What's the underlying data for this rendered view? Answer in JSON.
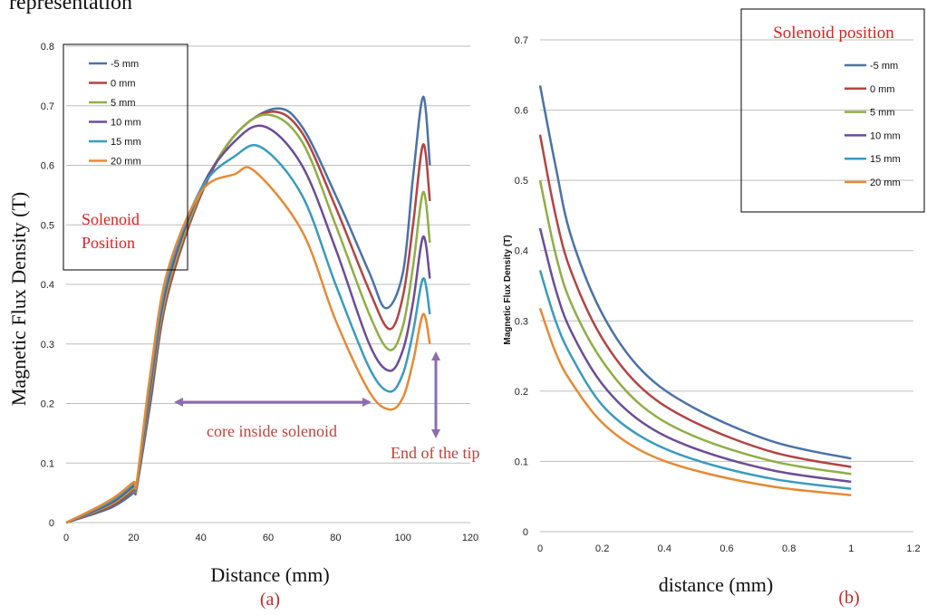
{
  "header_fragment": "representation",
  "charts": [
    {
      "id": "a",
      "type": "line",
      "panel_label": "(a)",
      "xlabel": "Distance (mm)",
      "ylabel": "Magnetic Flux Density (T)",
      "xlim": [
        0,
        120
      ],
      "ylim": [
        0,
        0.8
      ],
      "x_ticks": [
        "0",
        "20",
        "40",
        "60",
        "80",
        "100",
        "120"
      ],
      "y_ticks": [
        "0",
        "0.1",
        "0.2",
        "0.3",
        "0.4",
        "0.5",
        "0.6",
        "0.7",
        "0.8"
      ],
      "grid": true,
      "legend_title": "Solenoid Position",
      "legend_position": "top-left",
      "annotations": {
        "core_label": "core inside solenoid",
        "tip_label": "End of the tip"
      },
      "series": [
        {
          "name": "-5 mm",
          "color": "#4a72a8",
          "points": [
            [
              0,
              0
            ],
            [
              10,
              0.018
            ],
            [
              15,
              0.03
            ],
            [
              20,
              0.05
            ],
            [
              21,
              0.06
            ],
            [
              25,
              0.2
            ],
            [
              30,
              0.38
            ],
            [
              40,
              0.55
            ],
            [
              50,
              0.65
            ],
            [
              62,
              0.695
            ],
            [
              70,
              0.665
            ],
            [
              80,
              0.55
            ],
            [
              90,
              0.42
            ],
            [
              95,
              0.36
            ],
            [
              100,
              0.42
            ],
            [
              103,
              0.58
            ],
            [
              106,
              0.715
            ],
            [
              108,
              0.6
            ]
          ]
        },
        {
          "name": "0 mm",
          "color": "#b24443",
          "points": [
            [
              0,
              0
            ],
            [
              10,
              0.02
            ],
            [
              15,
              0.033
            ],
            [
              20,
              0.055
            ],
            [
              21,
              0.062
            ],
            [
              25,
              0.21
            ],
            [
              30,
              0.38
            ],
            [
              40,
              0.55
            ],
            [
              50,
              0.65
            ],
            [
              61,
              0.69
            ],
            [
              70,
              0.655
            ],
            [
              80,
              0.53
            ],
            [
              90,
              0.39
            ],
            [
              96,
              0.325
            ],
            [
              100,
              0.38
            ],
            [
              103,
              0.5
            ],
            [
              106,
              0.635
            ],
            [
              108,
              0.54
            ]
          ]
        },
        {
          "name": "5 mm",
          "color": "#8fae46",
          "points": [
            [
              0,
              0
            ],
            [
              10,
              0.022
            ],
            [
              15,
              0.036
            ],
            [
              20,
              0.058
            ],
            [
              21,
              0.064
            ],
            [
              25,
              0.22
            ],
            [
              30,
              0.39
            ],
            [
              40,
              0.555
            ],
            [
              50,
              0.65
            ],
            [
              60,
              0.685
            ],
            [
              70,
              0.64
            ],
            [
              80,
              0.5
            ],
            [
              90,
              0.35
            ],
            [
              96,
              0.29
            ],
            [
              100,
              0.33
            ],
            [
              103,
              0.43
            ],
            [
              106,
              0.555
            ],
            [
              108,
              0.47
            ]
          ]
        },
        {
          "name": "10 mm",
          "color": "#6c4d96",
          "points": [
            [
              0,
              0
            ],
            [
              10,
              0.024
            ],
            [
              15,
              0.039
            ],
            [
              20,
              0.062
            ],
            [
              21,
              0.066
            ],
            [
              25,
              0.23
            ],
            [
              30,
              0.4
            ],
            [
              40,
              0.56
            ],
            [
              50,
              0.64
            ],
            [
              59,
              0.665
            ],
            [
              70,
              0.6
            ],
            [
              80,
              0.46
            ],
            [
              90,
              0.3
            ],
            [
              96,
              0.255
            ],
            [
              100,
              0.29
            ],
            [
              103,
              0.37
            ],
            [
              106,
              0.48
            ],
            [
              108,
              0.41
            ]
          ]
        },
        {
          "name": "15 mm",
          "color": "#3a9bbd",
          "points": [
            [
              0,
              0
            ],
            [
              10,
              0.026
            ],
            [
              15,
              0.042
            ],
            [
              20,
              0.065
            ],
            [
              21,
              0.068
            ],
            [
              25,
              0.24
            ],
            [
              30,
              0.41
            ],
            [
              40,
              0.56
            ],
            [
              50,
              0.615
            ],
            [
              58,
              0.63
            ],
            [
              70,
              0.55
            ],
            [
              80,
              0.4
            ],
            [
              90,
              0.26
            ],
            [
              96,
              0.22
            ],
            [
              100,
              0.25
            ],
            [
              103,
              0.32
            ],
            [
              106,
              0.41
            ],
            [
              108,
              0.35
            ]
          ]
        },
        {
          "name": "20 mm",
          "color": "#e58a35",
          "points": [
            [
              0,
              0
            ],
            [
              10,
              0.028
            ],
            [
              15,
              0.045
            ],
            [
              20,
              0.068
            ],
            [
              21,
              0.07
            ],
            [
              25,
              0.25
            ],
            [
              30,
              0.42
            ],
            [
              40,
              0.555
            ],
            [
              50,
              0.585
            ],
            [
              56,
              0.59
            ],
            [
              70,
              0.49
            ],
            [
              80,
              0.34
            ],
            [
              90,
              0.22
            ],
            [
              96,
              0.19
            ],
            [
              100,
              0.21
            ],
            [
              103,
              0.27
            ],
            [
              106,
              0.35
            ],
            [
              108,
              0.3
            ]
          ]
        }
      ]
    },
    {
      "id": "b",
      "type": "line",
      "panel_label": "(b)",
      "xlabel": "distance (mm)",
      "ylabel": "Magnetic Flux Density (T)",
      "xlim": [
        0,
        1.2
      ],
      "ylim": [
        0,
        0.7
      ],
      "x_ticks": [
        "0",
        "0.2",
        "0.4",
        "0.6",
        "0.8",
        "1",
        "1.2"
      ],
      "y_ticks": [
        "0",
        "0.1",
        "0.2",
        "0.3",
        "0.4",
        "0.5",
        "0.6",
        "0.7"
      ],
      "grid": true,
      "legend_title": "Solenoid position",
      "legend_position": "top-right",
      "series": [
        {
          "name": "-5 mm",
          "color": "#4a72a8",
          "points": [
            [
              0,
              0.635
            ],
            [
              0.05,
              0.52
            ],
            [
              0.1,
              0.42
            ],
            [
              0.2,
              0.31
            ],
            [
              0.33,
              0.228
            ],
            [
              0.5,
              0.175
            ],
            [
              0.75,
              0.128
            ],
            [
              1,
              0.104
            ]
          ]
        },
        {
          "name": "0 mm",
          "color": "#b24443",
          "points": [
            [
              0,
              0.565
            ],
            [
              0.05,
              0.45
            ],
            [
              0.1,
              0.37
            ],
            [
              0.2,
              0.275
            ],
            [
              0.33,
              0.203
            ],
            [
              0.5,
              0.155
            ],
            [
              0.75,
              0.113
            ],
            [
              1,
              0.092
            ]
          ]
        },
        {
          "name": "5 mm",
          "color": "#8fae46",
          "points": [
            [
              0,
              0.5
            ],
            [
              0.05,
              0.395
            ],
            [
              0.1,
              0.325
            ],
            [
              0.2,
              0.243
            ],
            [
              0.33,
              0.178
            ],
            [
              0.5,
              0.135
            ],
            [
              0.75,
              0.1
            ],
            [
              1,
              0.082
            ]
          ]
        },
        {
          "name": "10 mm",
          "color": "#6c4d96",
          "points": [
            [
              0,
              0.432
            ],
            [
              0.05,
              0.345
            ],
            [
              0.1,
              0.285
            ],
            [
              0.2,
              0.21
            ],
            [
              0.33,
              0.155
            ],
            [
              0.5,
              0.118
            ],
            [
              0.75,
              0.087
            ],
            [
              1,
              0.071
            ]
          ]
        },
        {
          "name": "15 mm",
          "color": "#3a9bbd",
          "points": [
            [
              0,
              0.372
            ],
            [
              0.05,
              0.3
            ],
            [
              0.1,
              0.25
            ],
            [
              0.2,
              0.18
            ],
            [
              0.33,
              0.134
            ],
            [
              0.5,
              0.102
            ],
            [
              0.75,
              0.075
            ],
            [
              1,
              0.061
            ]
          ]
        },
        {
          "name": "20 mm",
          "color": "#e58a35",
          "points": [
            [
              0,
              0.318
            ],
            [
              0.05,
              0.255
            ],
            [
              0.1,
              0.213
            ],
            [
              0.2,
              0.155
            ],
            [
              0.33,
              0.114
            ],
            [
              0.5,
              0.087
            ],
            [
              0.75,
              0.064
            ],
            [
              1,
              0.052
            ]
          ]
        }
      ]
    }
  ]
}
